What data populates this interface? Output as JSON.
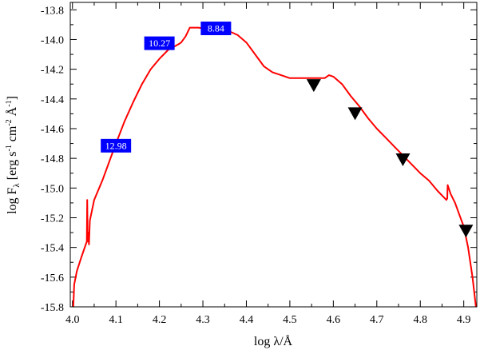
{
  "chart_data": {
    "type": "line",
    "xlabel": "log λ/Å",
    "ylabel_parts": {
      "base": "log F",
      "sub": "λ",
      "p1": " [erg s",
      "sup1": "-1",
      "p2": " cm",
      "sup2": "-2",
      "p3": " Å",
      "sup3": "-1",
      "p4": "]"
    },
    "xlim": [
      3.995,
      4.93
    ],
    "ylim": [
      -15.8,
      -13.75
    ],
    "xticks": [
      {
        "value": 4.0,
        "label": "4.0"
      },
      {
        "value": 4.1,
        "label": "4.1"
      },
      {
        "value": 4.2,
        "label": "4.2"
      },
      {
        "value": 4.3,
        "label": "4.3"
      },
      {
        "value": 4.4,
        "label": "4.4"
      },
      {
        "value": 4.5,
        "label": "4.5"
      },
      {
        "value": 4.6,
        "label": "4.6"
      },
      {
        "value": 4.7,
        "label": "4.7"
      },
      {
        "value": 4.8,
        "label": "4.8"
      },
      {
        "value": 4.9,
        "label": "4.9"
      }
    ],
    "yticks": [
      {
        "value": -13.8,
        "label": "-13.8"
      },
      {
        "value": -14.0,
        "label": "-14.0"
      },
      {
        "value": -14.2,
        "label": "-14.2"
      },
      {
        "value": -14.4,
        "label": "-14.4"
      },
      {
        "value": -14.6,
        "label": "-14.6"
      },
      {
        "value": -14.8,
        "label": "-14.8"
      },
      {
        "value": -15.0,
        "label": "-15.0"
      },
      {
        "value": -15.2,
        "label": "-15.2"
      },
      {
        "value": -15.4,
        "label": "-15.4"
      },
      {
        "value": -15.6,
        "label": "-15.6"
      },
      {
        "value": -15.8,
        "label": "-15.8"
      }
    ],
    "series": [
      {
        "color": "#ff0000",
        "points": [
          [
            4.002,
            -15.8
          ],
          [
            4.004,
            -15.65
          ],
          [
            4.01,
            -15.56
          ],
          [
            4.02,
            -15.47
          ],
          [
            4.033,
            -15.36
          ],
          [
            4.034,
            -15.08
          ],
          [
            4.035,
            -15.36
          ],
          [
            4.036,
            -15.3
          ],
          [
            4.037,
            -15.3
          ],
          [
            4.038,
            -15.38
          ],
          [
            4.04,
            -15.22
          ],
          [
            4.05,
            -15.08
          ],
          [
            4.07,
            -14.94
          ],
          [
            4.09,
            -14.78
          ],
          [
            4.1,
            -14.7
          ],
          [
            4.12,
            -14.55
          ],
          [
            4.14,
            -14.42
          ],
          [
            4.16,
            -14.3
          ],
          [
            4.18,
            -14.2
          ],
          [
            4.2,
            -14.13
          ],
          [
            4.22,
            -14.07
          ],
          [
            4.245,
            -14.03
          ],
          [
            4.25,
            -14.02
          ],
          [
            4.26,
            -13.98
          ],
          [
            4.27,
            -13.92
          ],
          [
            4.29,
            -13.92
          ],
          [
            4.31,
            -13.93
          ],
          [
            4.33,
            -13.93
          ],
          [
            4.35,
            -13.93
          ],
          [
            4.38,
            -13.97
          ],
          [
            4.4,
            -14.02
          ],
          [
            4.42,
            -14.1
          ],
          [
            4.44,
            -14.18
          ],
          [
            4.46,
            -14.22
          ],
          [
            4.48,
            -14.24
          ],
          [
            4.5,
            -14.26
          ],
          [
            4.52,
            -14.26
          ],
          [
            4.54,
            -14.26
          ],
          [
            4.56,
            -14.26
          ],
          [
            4.58,
            -14.26
          ],
          [
            4.59,
            -14.24
          ],
          [
            4.6,
            -14.25
          ],
          [
            4.62,
            -14.3
          ],
          [
            4.64,
            -14.38
          ],
          [
            4.66,
            -14.45
          ],
          [
            4.68,
            -14.53
          ],
          [
            4.7,
            -14.6
          ],
          [
            4.72,
            -14.66
          ],
          [
            4.74,
            -14.72
          ],
          [
            4.76,
            -14.78
          ],
          [
            4.78,
            -14.84
          ],
          [
            4.8,
            -14.9
          ],
          [
            4.82,
            -14.95
          ],
          [
            4.84,
            -15.02
          ],
          [
            4.86,
            -15.08
          ],
          [
            4.862,
            -15.07
          ],
          [
            4.863,
            -14.98
          ],
          [
            4.87,
            -15.04
          ],
          [
            4.88,
            -15.1
          ],
          [
            4.89,
            -15.18
          ],
          [
            4.9,
            -15.26
          ],
          [
            4.91,
            -15.4
          ],
          [
            4.92,
            -15.6
          ],
          [
            4.928,
            -15.8
          ]
        ]
      }
    ],
    "markers": [
      {
        "x": 4.555,
        "y": -14.31
      },
      {
        "x": 4.65,
        "y": -14.5
      },
      {
        "x": 4.76,
        "y": -14.81
      },
      {
        "x": 4.905,
        "y": -15.29
      }
    ],
    "annotations": [
      {
        "label": "12.98",
        "x": 4.1,
        "y": -14.715
      },
      {
        "label": "10.27",
        "x": 4.2,
        "y": -14.025
      },
      {
        "label": "8.84",
        "x": 4.33,
        "y": -13.925
      }
    ]
  }
}
